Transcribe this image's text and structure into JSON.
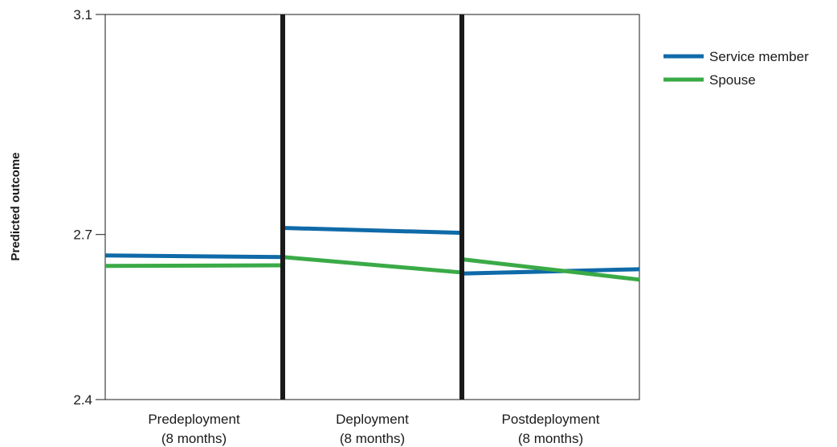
{
  "chart_data": {
    "type": "line",
    "title": "",
    "xlabel": "",
    "ylabel": "Predicted outcome",
    "ylim": [
      2.4,
      3.1
    ],
    "yticks": [
      "2.4",
      "2.7",
      "3.1"
    ],
    "phases": [
      {
        "line1": "Predeployment",
        "line2": "(8 months)"
      },
      {
        "line1": "Deployment",
        "line2": "(8 months)"
      },
      {
        "line1": "Postdeployment",
        "line2": "(8 months)"
      }
    ],
    "grid": false,
    "legend_position": "top-right",
    "series": [
      {
        "name": "Service member",
        "color": "#0f6aa8",
        "segments": [
          {
            "phase": 0,
            "start": 2.662,
            "end": 2.659
          },
          {
            "phase": 1,
            "start": 2.712,
            "end": 2.703
          },
          {
            "phase": 2,
            "start": 2.629,
            "end": 2.637
          }
        ]
      },
      {
        "name": "Spouse",
        "color": "#3aaa47",
        "segments": [
          {
            "phase": 0,
            "start": 2.643,
            "end": 2.644
          },
          {
            "phase": 1,
            "start": 2.659,
            "end": 2.631
          },
          {
            "phase": 2,
            "start": 2.655,
            "end": 2.618
          }
        ]
      }
    ]
  }
}
